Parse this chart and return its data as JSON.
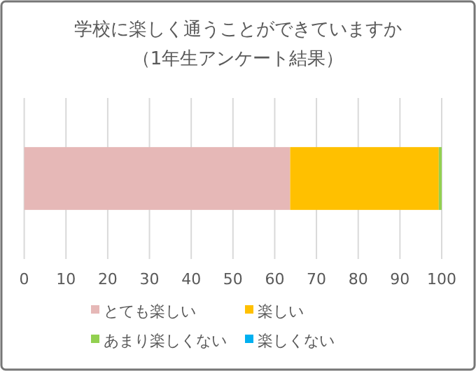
{
  "chart_data": {
    "type": "bar",
    "orientation": "horizontal",
    "stacked": true,
    "title": "学校に楽しく通うことができていますか",
    "subtitle": "（1年生アンケート結果）",
    "categories": [
      null
    ],
    "series": [
      {
        "name": "とても楽しい",
        "color": "#e6b8b7",
        "values": [
          63.7
        ]
      },
      {
        "name": "楽しい",
        "color": "#ffc000",
        "values": [
          35.6
        ]
      },
      {
        "name": "あまり楽しくない",
        "color": "#92d050",
        "values": [
          0.7
        ]
      },
      {
        "name": "楽しくない",
        "color": "#00b0f0",
        "values": [
          0
        ]
      }
    ],
    "xlim": [
      0,
      100
    ],
    "xticks": [
      0,
      10,
      20,
      30,
      40,
      50,
      60,
      70,
      80,
      90,
      100
    ],
    "grid": "x",
    "legend": "bottom"
  }
}
